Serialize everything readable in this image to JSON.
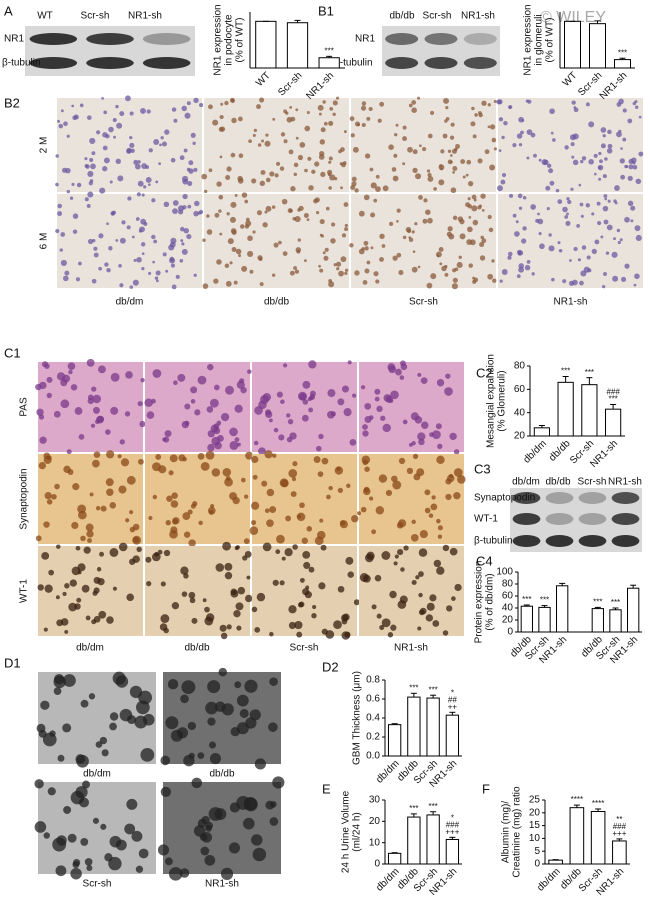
{
  "figure": {
    "blot_A": {
      "label": "A",
      "lanes": [
        "WT",
        "Scr-sh",
        "NR1-sh"
      ],
      "rows": [
        "NR1",
        "β-tubulin"
      ]
    },
    "blot_B1": {
      "label": "B1",
      "lanes": [
        "db/db",
        "Scr-sh",
        "NR1-sh"
      ],
      "rows": [
        "NR1",
        "β-tubulin"
      ]
    },
    "watermark": "© WILEY",
    "B2": {
      "label": "B2",
      "rows": [
        "2 M",
        "6 M"
      ],
      "columns": [
        "db/dm",
        "db/db",
        "Scr-sh",
        "NR1-sh"
      ]
    },
    "C1": {
      "label": "C1",
      "rows": [
        "PAS",
        "Synaptopodin",
        "WT-1"
      ],
      "columns": [
        "db/dm",
        "db/db",
        "Scr-sh",
        "NR1-sh"
      ]
    },
    "C3": {
      "label": "C3",
      "lanes": [
        "db/dm",
        "db/db",
        "Scr-sh",
        "NR1-sh"
      ],
      "rows": [
        "Synaptopodin",
        "WT-1",
        "β-tubulin"
      ]
    },
    "D1": {
      "label": "D1",
      "columns": [
        "db/dm",
        "db/db",
        "Scr-sh",
        "NR1-sh"
      ]
    }
  },
  "chart_data": [
    {
      "type": "bar",
      "ylabel": [
        "NR1 expression",
        "in podocyte",
        "(% of WT)"
      ],
      "categories": [
        "WT",
        "Scr-sh",
        "NR1-sh"
      ],
      "values": [
        100,
        97,
        22
      ],
      "errors": [
        0,
        5,
        3
      ],
      "annotations": [
        [],
        [],
        [
          "***"
        ]
      ],
      "color": "#ffffff",
      "ylim": [
        0,
        120
      ]
    },
    {
      "type": "bar",
      "ylabel": [
        "NR1 expression",
        "in glomeruli",
        "(% of WT)"
      ],
      "categories": [
        "WT",
        "Scr-sh",
        "NR1-sh"
      ],
      "values": [
        100,
        95,
        18
      ],
      "errors": [
        0,
        6,
        3
      ],
      "annotations": [
        [],
        [],
        [
          "***"
        ]
      ],
      "color": "#ffffff",
      "ylim": [
        0,
        120
      ]
    },
    {
      "type": "bar",
      "label": "C2",
      "ylabel": [
        "Mesangial expansion",
        "(% Glomeruli)"
      ],
      "categories": [
        "db/dm",
        "db/db",
        "Scr-sh",
        "NR1-sh"
      ],
      "values": [
        27,
        66,
        64,
        43
      ],
      "errors": [
        2,
        5,
        6,
        4
      ],
      "annotations": [
        [],
        [
          "***"
        ],
        [
          "***"
        ],
        [
          "###",
          "***"
        ]
      ],
      "color": "#ffffff",
      "ylim": [
        20,
        80
      ],
      "yticks": [
        20,
        40,
        60,
        80
      ]
    },
    {
      "type": "bar",
      "label": "C4",
      "ylabel": [
        "Protein expression",
        "(% of db/dm)"
      ],
      "categories": [
        "db/db",
        "Scr-sh",
        "NR1-sh",
        "db/db",
        "Scr-sh",
        "NR1-sh"
      ],
      "values": [
        43,
        41,
        77,
        39,
        37,
        73
      ],
      "errors": [
        2,
        3,
        4,
        2,
        3,
        5
      ],
      "annotations": [
        [
          "***"
        ],
        [
          "***"
        ],
        [],
        [
          "***"
        ],
        [
          "***"
        ],
        []
      ],
      "color": "#ffffff",
      "ylim": [
        0,
        100
      ],
      "yticks": [
        0,
        20,
        40,
        60,
        80,
        100
      ]
    },
    {
      "type": "bar",
      "label": "D2",
      "ylabel": [
        "GBM Thickness (μm)"
      ],
      "categories": [
        "db/dm",
        "db/db",
        "Scr-sh",
        "NR1-sh"
      ],
      "values": [
        0.33,
        0.62,
        0.61,
        0.43
      ],
      "errors": [
        0.01,
        0.04,
        0.03,
        0.03
      ],
      "annotations": [
        [],
        [
          "***"
        ],
        [
          "***"
        ],
        [
          "*",
          "##",
          "++"
        ]
      ],
      "color": "#ffffff",
      "ylim": [
        0,
        0.8
      ],
      "yticks": [
        {
          "value": 0,
          "label": "0.0"
        },
        0.2,
        0.4,
        0.6,
        0.8
      ]
    },
    {
      "type": "bar",
      "label": "E",
      "ylabel": [
        "24 h Urine Volume",
        "(ml/24 h)"
      ],
      "categories": [
        "db/dm",
        "db/db",
        "Scr-sh",
        "NR1-sh"
      ],
      "values": [
        5,
        22,
        23,
        11.5
      ],
      "errors": [
        0.3,
        1.5,
        1.5,
        1
      ],
      "annotations": [
        [],
        [
          "***"
        ],
        [
          "***"
        ],
        [
          "*",
          "###",
          "+++"
        ]
      ],
      "color": "#ffffff",
      "ylim": [
        0,
        30
      ],
      "yticks": [
        0,
        10,
        20,
        30
      ]
    },
    {
      "type": "bar",
      "label": "F",
      "ylabel": [
        "Albumin (mg)/",
        "Creatinine (mg) ratio"
      ],
      "categories": [
        "db/dm",
        "db/db",
        "Scr-sh",
        "NR1-sh"
      ],
      "values": [
        1.5,
        22,
        20.5,
        9
      ],
      "errors": [
        0.2,
        1,
        1,
        0.8
      ],
      "annotations": [
        [],
        [
          "****"
        ],
        [
          "****"
        ],
        [
          "**",
          "###",
          "+++"
        ]
      ],
      "color": "#ffffff",
      "ylim": [
        0,
        25
      ],
      "yticks": [
        0,
        5,
        10,
        15,
        20,
        25
      ]
    }
  ]
}
